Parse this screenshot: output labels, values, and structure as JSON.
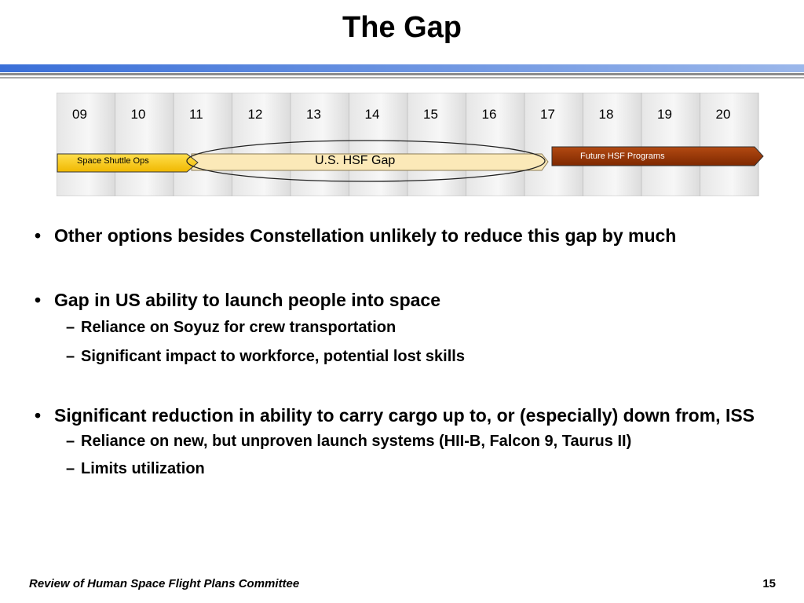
{
  "slide": {
    "title": "The Gap",
    "page_number": "15",
    "footer": "Review of Human Space Flight Plans Committee"
  },
  "timeline": {
    "years": [
      "09",
      "10",
      "11",
      "12",
      "13",
      "14",
      "15",
      "16",
      "17",
      "18",
      "19",
      "20"
    ],
    "bars": [
      {
        "label": "Space Shuttle Ops",
        "color": "#ffcc00"
      },
      {
        "label": "U.S. HSF Gap",
        "color": "#fbe9b8"
      },
      {
        "label": "Future HSF Programs",
        "color": "#993300"
      }
    ]
  },
  "bullets": [
    {
      "text": "Other options besides Constellation unlikely to reduce this gap by much",
      "subs": []
    },
    {
      "text": "Gap in US ability to launch people into space",
      "subs": [
        "Reliance on Soyuz for crew transportation",
        "Significant impact to workforce, potential lost skills"
      ]
    },
    {
      "text": "Significant reduction in ability to carry cargo up to, or (especially) down from, ISS",
      "subs": [
        "Reliance on new, but unproven launch systems (HII-B, Falcon 9, Taurus II)",
        "Limits utilization"
      ]
    }
  ],
  "glyphs": {
    "bullet": "•",
    "dash": "–"
  }
}
